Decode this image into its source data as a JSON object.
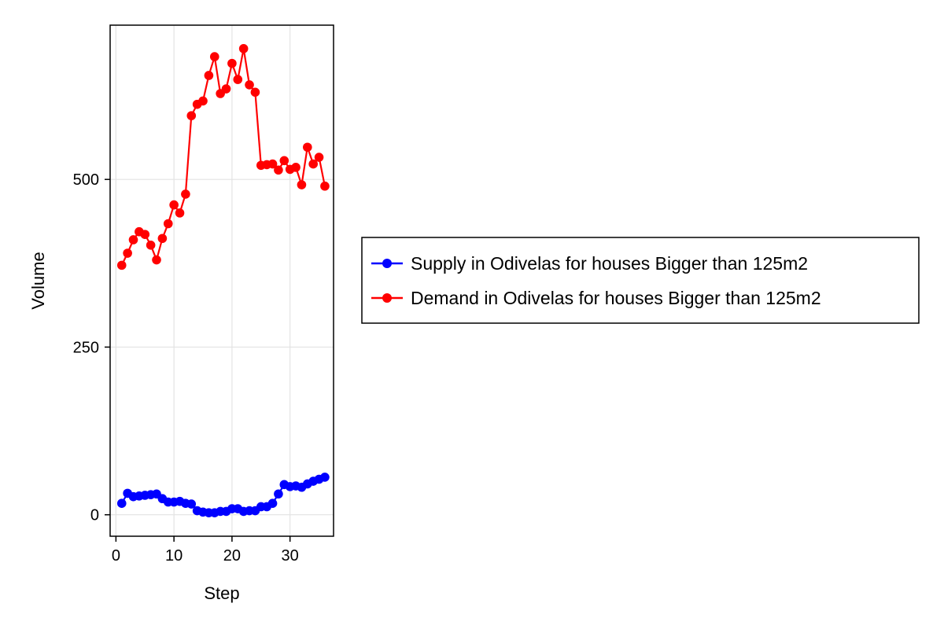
{
  "chart_data": {
    "type": "line",
    "title": "",
    "xlabel": "Step",
    "ylabel": "Volume",
    "xlim": [
      -1,
      37.5
    ],
    "ylim": [
      -32,
      730
    ],
    "xticks": [
      0,
      10,
      20,
      30
    ],
    "yticks": [
      0,
      250,
      500
    ],
    "xtick_labels": [
      "0",
      "10",
      "20",
      "30"
    ],
    "ytick_labels": [
      "0",
      "250",
      "500"
    ],
    "grid": true,
    "legend_position": "right",
    "x": [
      1,
      2,
      3,
      4,
      5,
      6,
      7,
      8,
      9,
      10,
      11,
      12,
      13,
      14,
      15,
      16,
      17,
      18,
      19,
      20,
      21,
      22,
      23,
      24,
      25,
      26,
      27,
      28,
      29,
      30,
      31,
      32,
      33,
      34,
      35,
      36
    ],
    "series": [
      {
        "name": "Supply in Odivelas for houses Bigger than 125m2",
        "color": "#0000ff",
        "values": [
          17,
          32,
          27,
          28,
          29,
          30,
          31,
          24,
          19,
          19,
          20,
          17,
          16,
          6,
          4,
          3,
          3,
          5,
          5,
          9,
          9,
          5,
          6,
          6,
          12,
          12,
          17,
          31,
          45,
          42,
          43,
          41,
          46,
          50,
          53,
          56
        ]
      },
      {
        "name": "Demand in Odivelas for houses Bigger than 125m2",
        "color": "#ff0000",
        "values": [
          372,
          390,
          410,
          422,
          418,
          402,
          380,
          412,
          434,
          462,
          450,
          478,
          595,
          612,
          617,
          655,
          683,
          628,
          635,
          673,
          649,
          695,
          641,
          630,
          521,
          522,
          523,
          514,
          528,
          515,
          518,
          492,
          548,
          523,
          533,
          490
        ]
      }
    ]
  }
}
